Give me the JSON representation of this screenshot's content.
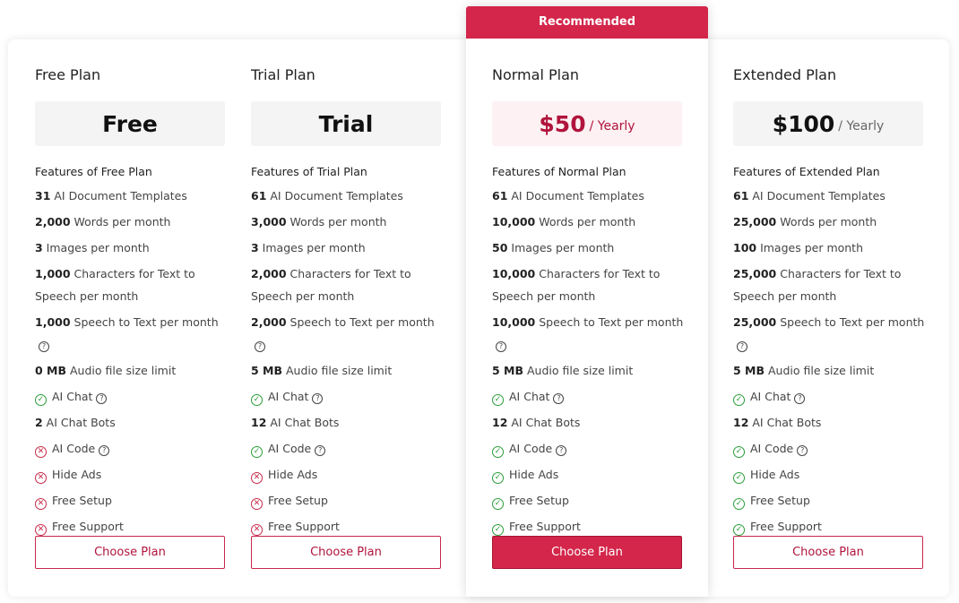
{
  "recommended_label": "Recommended",
  "features_prefix": "Features of ",
  "colors": {
    "accent": "#d3264a",
    "check": "#2a9d3a",
    "cross": "#c62a48"
  },
  "plans": [
    {
      "name": "Free Plan",
      "price": "Free",
      "period": "",
      "button": "Choose Plan",
      "items": [
        {
          "bold": "31",
          "text": " AI Document Templates"
        },
        {
          "bold": "2,000",
          "text": " Words per month"
        },
        {
          "bold": "3",
          "text": " Images per month"
        },
        {
          "bold": "1,000",
          "text": " Characters for Text to Speech per month"
        },
        {
          "bold": "1,000",
          "text": " Speech to Text per month",
          "help": true,
          "wrap": true
        },
        {
          "bold": "0 MB",
          "text": " Audio file size limit"
        },
        {
          "icon": "check",
          "text": "AI Chat",
          "help": true
        },
        {
          "bold": "2",
          "text": " AI Chat Bots"
        },
        {
          "icon": "cross",
          "text": "AI Code",
          "help": true
        },
        {
          "icon": "cross",
          "text": "Hide Ads"
        },
        {
          "icon": "cross",
          "text": "Free Setup"
        },
        {
          "icon": "cross",
          "text": "Free Support"
        }
      ]
    },
    {
      "name": "Trial Plan",
      "price": "Trial",
      "period": "",
      "button": "Choose Plan",
      "items": [
        {
          "bold": "61",
          "text": " AI Document Templates"
        },
        {
          "bold": "3,000",
          "text": " Words per month"
        },
        {
          "bold": "3",
          "text": " Images per month"
        },
        {
          "bold": "2,000",
          "text": " Characters for Text to Speech per month"
        },
        {
          "bold": "2,000",
          "text": " Speech to Text per month",
          "help": true,
          "wrap": true
        },
        {
          "bold": "5 MB",
          "text": " Audio file size limit"
        },
        {
          "icon": "check",
          "text": "AI Chat",
          "help": true
        },
        {
          "bold": "12",
          "text": " AI Chat Bots"
        },
        {
          "icon": "check",
          "text": "AI Code",
          "help": true
        },
        {
          "icon": "cross",
          "text": "Hide Ads"
        },
        {
          "icon": "cross",
          "text": "Free Setup"
        },
        {
          "icon": "cross",
          "text": "Free Support"
        }
      ]
    },
    {
      "name": "Normal Plan",
      "price": "$50",
      "period": "/ Yearly",
      "button": "Choose Plan",
      "recommended": true,
      "items": [
        {
          "bold": "61",
          "text": " AI Document Templates"
        },
        {
          "bold": "10,000",
          "text": " Words per month"
        },
        {
          "bold": "50",
          "text": " Images per month"
        },
        {
          "bold": "10,000",
          "text": " Characters for Text to Speech per month"
        },
        {
          "bold": "10,000",
          "text": " Speech to Text per month",
          "help": true,
          "wrap": true
        },
        {
          "bold": "5 MB",
          "text": " Audio file size limit"
        },
        {
          "icon": "check",
          "text": "AI Chat",
          "help": true
        },
        {
          "bold": "12",
          "text": " AI Chat Bots"
        },
        {
          "icon": "check",
          "text": "AI Code",
          "help": true
        },
        {
          "icon": "check",
          "text": "Hide Ads"
        },
        {
          "icon": "check",
          "text": "Free Setup"
        },
        {
          "icon": "check",
          "text": "Free Support"
        }
      ]
    },
    {
      "name": "Extended Plan",
      "price": "$100",
      "period": "/ Yearly",
      "button": "Choose Plan",
      "items": [
        {
          "bold": "61",
          "text": " AI Document Templates"
        },
        {
          "bold": "25,000",
          "text": " Words per month"
        },
        {
          "bold": "100",
          "text": " Images per month"
        },
        {
          "bold": "25,000",
          "text": " Characters for Text to Speech per month"
        },
        {
          "bold": "25,000",
          "text": " Speech to Text per month",
          "help": true,
          "wrap": true
        },
        {
          "bold": "5 MB",
          "text": " Audio file size limit"
        },
        {
          "icon": "check",
          "text": "AI Chat",
          "help": true
        },
        {
          "bold": "12",
          "text": " AI Chat Bots"
        },
        {
          "icon": "check",
          "text": "AI Code",
          "help": true
        },
        {
          "icon": "check",
          "text": "Hide Ads"
        },
        {
          "icon": "check",
          "text": "Free Setup"
        },
        {
          "icon": "check",
          "text": "Free Support"
        }
      ]
    }
  ]
}
